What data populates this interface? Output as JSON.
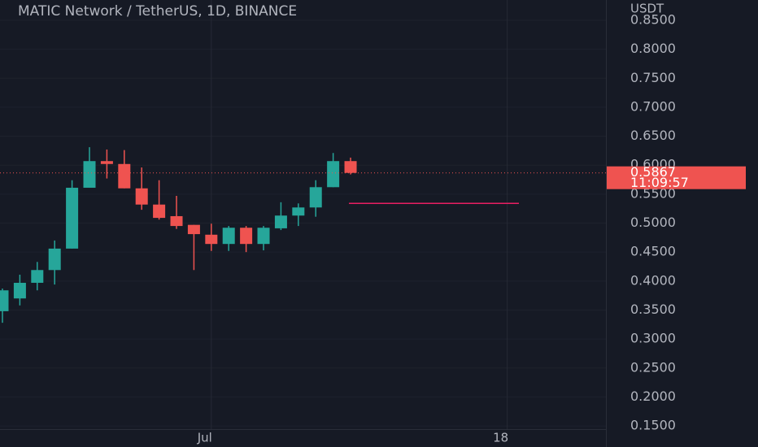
{
  "chart_data": {
    "type": "candlestick",
    "title": "MATIC Network / TetherUS, 1D, BINANCE",
    "y_axis_label": "USDT",
    "open": [
      0.348,
      0.37,
      0.397,
      0.419,
      0.456,
      0.561,
      0.607,
      0.602,
      0.56,
      0.532,
      0.512,
      0.497,
      0.48,
      0.464,
      0.492,
      0.464,
      0.491,
      0.513,
      0.527,
      0.562,
      0.607
    ],
    "high": [
      0.387,
      0.411,
      0.433,
      0.47,
      0.574,
      0.631,
      0.627,
      0.626,
      0.596,
      0.574,
      0.547,
      0.497,
      0.499,
      0.495,
      0.495,
      0.495,
      0.536,
      0.534,
      0.574,
      0.621,
      0.613
    ],
    "low": [
      0.328,
      0.358,
      0.384,
      0.394,
      0.456,
      0.561,
      0.577,
      0.56,
      0.523,
      0.506,
      0.49,
      0.419,
      0.452,
      0.452,
      0.45,
      0.453,
      0.488,
      0.495,
      0.511,
      0.562,
      0.584
    ],
    "close": [
      0.384,
      0.397,
      0.419,
      0.456,
      0.561,
      0.607,
      0.602,
      0.56,
      0.532,
      0.509,
      0.495,
      0.481,
      0.464,
      0.492,
      0.464,
      0.492,
      0.513,
      0.527,
      0.562,
      0.607,
      0.5867
    ],
    "up_color": "#26a69a",
    "down_color": "#ef5350",
    "countdown": "11:09:57",
    "horizontal_line": 0.534,
    "horizontal_line_color": "#e91e63",
    "grid": true,
    "xlim": [
      -0.14,
      34.67
    ],
    "xticks": [
      {
        "value": 12,
        "label": "Jul"
      },
      {
        "value": 29,
        "label": "18"
      }
    ],
    "ylim": [
      0.1445,
      0.885
    ],
    "yticks": [
      {
        "value": 0.15,
        "label": "0.1500"
      },
      {
        "value": 0.2,
        "label": "0.2000"
      },
      {
        "value": 0.25,
        "label": "0.2500"
      },
      {
        "value": 0.3,
        "label": "0.3000"
      },
      {
        "value": 0.35,
        "label": "0.3500"
      },
      {
        "value": 0.4,
        "label": "0.4000"
      },
      {
        "value": 0.45,
        "label": "0.4500"
      },
      {
        "value": 0.5,
        "label": "0.5000"
      },
      {
        "value": 0.55,
        "label": "0.5500"
      },
      {
        "value": 0.6,
        "label": "0.6000"
      },
      {
        "value": 0.65,
        "label": "0.6500"
      },
      {
        "value": 0.7,
        "label": "0.7000"
      },
      {
        "value": 0.75,
        "label": "0.7500"
      },
      {
        "value": 0.8,
        "label": "0.8000"
      },
      {
        "value": 0.85,
        "label": "0.8500"
      }
    ]
  }
}
